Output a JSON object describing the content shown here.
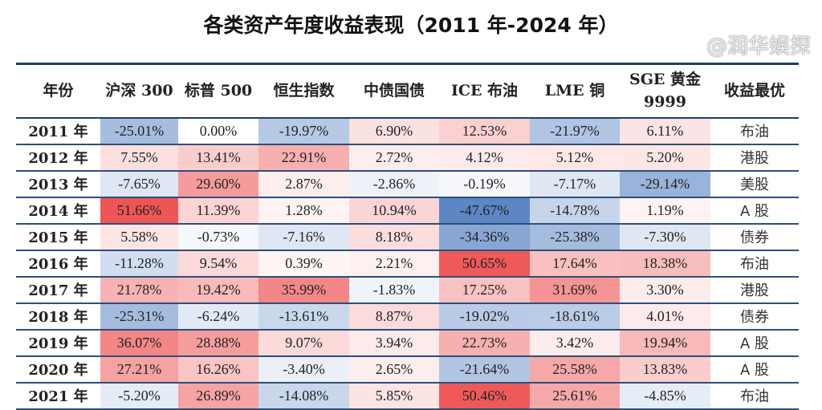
{
  "title": "各类资产年度收益表现（2011 年-2024 年）",
  "watermark": "@润华娱探",
  "colors": {
    "negative": "#4f7cc0",
    "positive": "#ee5555",
    "neutral": "#ffffff",
    "rule": "#1f3f66"
  },
  "chart_data": {
    "type": "heatmap",
    "title": "各类资产年度收益表现（2011 年-2024 年）",
    "columns": [
      "年份",
      "沪深 300",
      "标普 500",
      "恒生指数",
      "中债国债",
      "ICE 布油",
      "LME 铜",
      "SGE 黄金 9999",
      "收益最优"
    ],
    "rows": [
      {
        "year": "2011 年",
        "values": [
          "-25.01%",
          "0.00%",
          "-19.97%",
          "6.90%",
          "12.53%",
          "-21.97%",
          "6.11%"
        ],
        "best": "布油"
      },
      {
        "year": "2012 年",
        "values": [
          "7.55%",
          "13.41%",
          "22.91%",
          "2.72%",
          "4.12%",
          "5.12%",
          "5.20%"
        ],
        "best": "港股"
      },
      {
        "year": "2013 年",
        "values": [
          "-7.65%",
          "29.60%",
          "2.87%",
          "-2.86%",
          "-0.19%",
          "-7.17%",
          "-29.14%"
        ],
        "best": "美股"
      },
      {
        "year": "2014 年",
        "values": [
          "51.66%",
          "11.39%",
          "1.28%",
          "10.94%",
          "-47.67%",
          "-14.78%",
          "1.19%"
        ],
        "best": "A 股"
      },
      {
        "year": "2015 年",
        "values": [
          "5.58%",
          "-0.73%",
          "-7.16%",
          "8.18%",
          "-34.36%",
          "-25.38%",
          "-7.30%"
        ],
        "best": "债券"
      },
      {
        "year": "2016 年",
        "values": [
          "-11.28%",
          "9.54%",
          "0.39%",
          "2.21%",
          "50.65%",
          "17.64%",
          "18.38%"
        ],
        "best": "布油"
      },
      {
        "year": "2017 年",
        "values": [
          "21.78%",
          "19.42%",
          "35.99%",
          "-1.83%",
          "17.25%",
          "31.69%",
          "3.30%"
        ],
        "best": "港股"
      },
      {
        "year": "2018 年",
        "values": [
          "-25.31%",
          "-6.24%",
          "-13.61%",
          "8.87%",
          "-19.02%",
          "-18.61%",
          "4.01%"
        ],
        "best": "债券"
      },
      {
        "year": "2019 年",
        "values": [
          "36.07%",
          "28.88%",
          "9.07%",
          "3.94%",
          "22.73%",
          "3.42%",
          "19.94%"
        ],
        "best": "A 股"
      },
      {
        "year": "2020 年",
        "values": [
          "27.21%",
          "16.26%",
          "-3.40%",
          "2.65%",
          "-21.64%",
          "25.58%",
          "13.83%"
        ],
        "best": "A 股"
      },
      {
        "year": "2021 年",
        "values": [
          "-5.20%",
          "26.89%",
          "-14.08%",
          "5.85%",
          "50.46%",
          "25.61%",
          "-4.85%"
        ],
        "best": "布油"
      }
    ]
  }
}
